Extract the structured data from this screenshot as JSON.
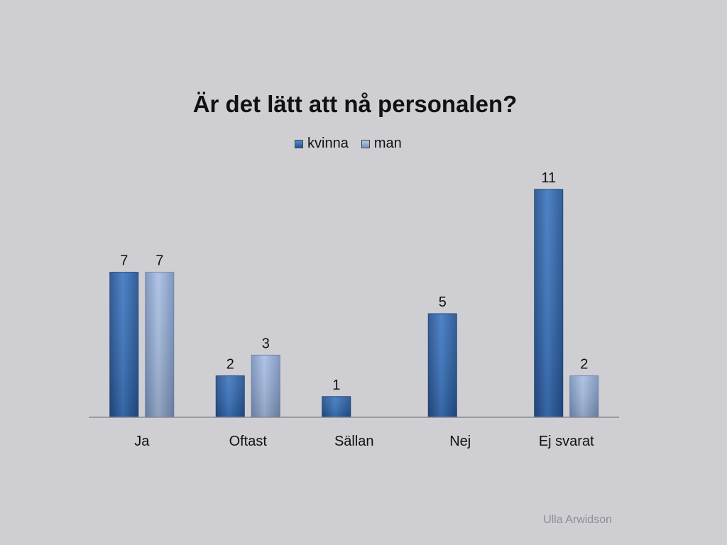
{
  "chart_data": {
    "type": "bar",
    "title": "Är det lätt att nå personalen?",
    "categories": [
      "Ja",
      "Oftast",
      "Sällan",
      "Nej",
      "Ej svarat"
    ],
    "series": [
      {
        "name": "kvinna",
        "values": [
          7,
          2,
          1,
          5,
          11
        ],
        "color": "#2f64a8"
      },
      {
        "name": "man",
        "values": [
          7,
          3,
          null,
          null,
          2
        ],
        "color": "#8aa4cf"
      }
    ],
    "data_labels": true,
    "grid": false,
    "legend_position": "top",
    "ylim": [
      0,
      11
    ]
  },
  "footer": {
    "credit": "Ulla Arwidson"
  }
}
